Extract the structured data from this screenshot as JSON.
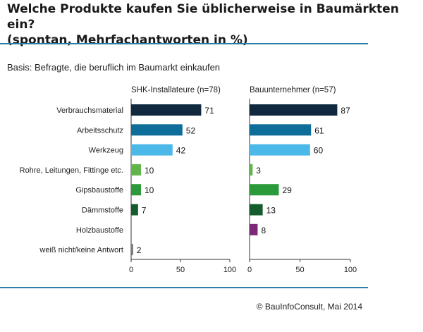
{
  "title_line1": "Welche Produkte kaufen Sie üblicherweise in Baumärkten ein?",
  "title_line2": "(spontan, Mehrfachantworten in %)",
  "basis": "Basis: Befragte, die beruflich im Baumarkt einkaufen",
  "footer": "© BauInfoConsult, Mai 2014",
  "chart_data": {
    "type": "bar",
    "orientation": "horizontal",
    "categories": [
      "Verbrauchsmaterial",
      "Arbeitsschutz",
      "Werkzeug",
      "Rohre, Leitungen, Fittinge etc.",
      "Gipsbaustoffe",
      "Dämmstoffe",
      "Holzbaustoffe",
      "weiß nicht/keine Antwort"
    ],
    "category_colors": [
      "#10293e",
      "#0f6e99",
      "#4cb8e8",
      "#5fb54a",
      "#2b9a3b",
      "#145c2b",
      "#7b2a78",
      "#777777"
    ],
    "xlim": [
      0,
      100
    ],
    "xticks": [
      0,
      50,
      100
    ],
    "grid": false,
    "legend": "none",
    "panels": [
      {
        "name": "SHK-Installateure (n=78)",
        "values": [
          71,
          52,
          42,
          10,
          10,
          7,
          null,
          2
        ]
      },
      {
        "name": "Bauunternehmer (n=57)",
        "values": [
          87,
          61,
          60,
          3,
          29,
          13,
          8,
          null
        ]
      }
    ]
  }
}
